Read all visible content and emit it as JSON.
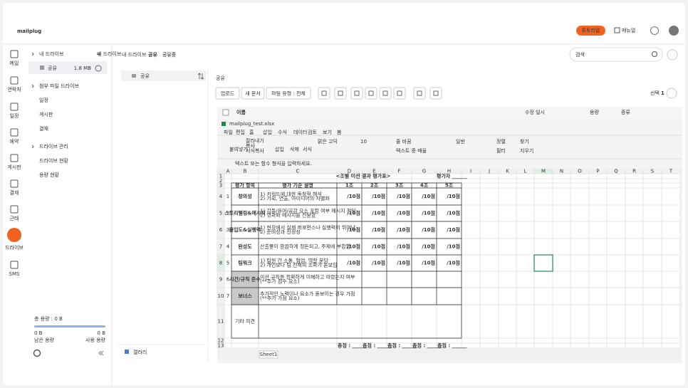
{
  "header": {
    "logo": "mailplug",
    "tutorial": "튜토리얼",
    "manual": "매뉴얼"
  },
  "rail": [
    "메일",
    "연락처",
    "일정",
    "예약",
    "게시판",
    "결재",
    "근태",
    "드라이브",
    "SMS"
  ],
  "sidebar": {
    "my_drive": "내 드라이브",
    "shared": "공유",
    "shared_size": "1.8 MB",
    "attach_drive": "첨부 파일 드라이브",
    "attach_items": [
      "일정",
      "게시판",
      "결재"
    ],
    "manage": "드라이브 관리",
    "manage_items": [
      "드라이브 현황",
      "용량 현황"
    ],
    "total": "총 용량 : 0 B",
    "remaining_value": "0 B",
    "used_value": "0 B",
    "remaining_label": "남은 용량",
    "used_label": "사용 용량"
  },
  "breadcrumb": {
    "parent": "내 드라이브",
    "current": "공유",
    "badge": "공유중"
  },
  "search": "검색",
  "folders": {
    "item": "공유",
    "gallery": "갤러리"
  },
  "main": {
    "title": "공유",
    "buttons": [
      "업로드",
      "새 문서",
      "파일 유형 : 전체"
    ],
    "selected_label": "선택",
    "selected_count": "1",
    "columns": [
      "이름",
      "수정 일시",
      "용량",
      "종류"
    ]
  },
  "preview": {
    "filename": "mailplug_test.xlsx",
    "tabs": [
      "파일",
      "편집",
      "홈",
      "삽입",
      "수식",
      "데이터",
      "검토",
      "보기",
      "봄"
    ],
    "ribbon": [
      "붙여넣기",
      "잘라내기",
      "복사",
      "서식복사",
      "삽입",
      "삭제",
      "서식",
      "맑은 고딕",
      "10",
      "줄 바꿈",
      "텍스트 중 배율",
      "일반",
      "정렬",
      "필터",
      "찾기",
      "지우기"
    ],
    "formula_hint": "텍스트 또는 함수 형식을 입력하세요.",
    "col_letters": [
      "A",
      "B",
      "C",
      "D",
      "E",
      "F",
      "G",
      "H",
      "I",
      "J",
      "K",
      "L",
      "M",
      "N",
      "O",
      "P",
      "Q",
      "R",
      "S",
      "T"
    ],
    "row_numbers": [
      "1",
      "2",
      "3",
      "4",
      "5",
      "6",
      "7",
      "8",
      "9",
      "10",
      "11",
      "12",
      "13"
    ],
    "sheet_tab": "Sheet1",
    "sheet": {
      "title": "<조별 미션 결과 평가표>",
      "evaluator": "평가자 ______",
      "headers": [
        "평가 항목",
        "평가 기준 설명",
        "1조",
        "2조",
        "3조",
        "4조",
        "5조"
      ],
      "rows": [
        {
          "no": "1",
          "item": "창의성",
          "criteria": [
            "1) 키워드에 대한 독창적 해석",
            "2) 기획, 연출, 아이디어의 차별화"
          ],
          "scores": [
            "/10점",
            "/10점",
            "/10점",
            "/10점",
            "/10점"
          ]
        },
        {
          "no": "2",
          "item": "스토리텔링&메시지",
          "criteria": [
            "1) 감동/유머/공감 요소 포함 여부 메시지 전달",
            "2) 영화와 메시지를 전달함"
          ],
          "scores": [
            "/10점",
            "/10점",
            "/10점",
            "/10점",
            "/10점"
          ]
        },
        {
          "no": "3",
          "item": "몰입도&실행력",
          "criteria": [
            "1) 현장에서 실제 퍼포먼스나 실행력이 뛰어남",
            "2) 준비성과 진정성"
          ],
          "scores": [
            "/10점",
            "/10점",
            "/10점",
            "/10점",
            "/10점"
          ]
        },
        {
          "no": "4",
          "item": "완성도",
          "criteria": [
            "산출물이 깔끔하게 정돈되고, 주제에 부합함"
          ],
          "scores": [
            "/10점",
            "/10점",
            "/10점",
            "/10점",
            "/10점"
          ]
        },
        {
          "no": "5",
          "item": "팀워크",
          "criteria": [
            "1) 팀원 간 소통, 협업, 역할 분담",
            "2) 개인보다 팀 전체의 조화가 돋보임"
          ],
          "scores": [
            "/10점",
            "/10점",
            "/10점",
            "/10점",
            "/10점"
          ]
        },
        {
          "no": "6",
          "item": "시간/규칙 준수",
          "criteria": [
            "미션 규칙을 정확하게 이해하고 따랐는지 여부",
            "(**추가 점수 요소)"
          ]
        },
        {
          "no": "7",
          "item": "보너스",
          "criteria": [
            "추가적인 노력이나 요소가 돋보이는 경우 가점",
            "(**추가 가점 요소)"
          ]
        }
      ],
      "comment": "기타 의견",
      "totals": [
        "총점 : ______",
        "총점 : ______",
        "총점 : ______",
        "총점 : ______",
        "총점 : ______"
      ]
    }
  }
}
